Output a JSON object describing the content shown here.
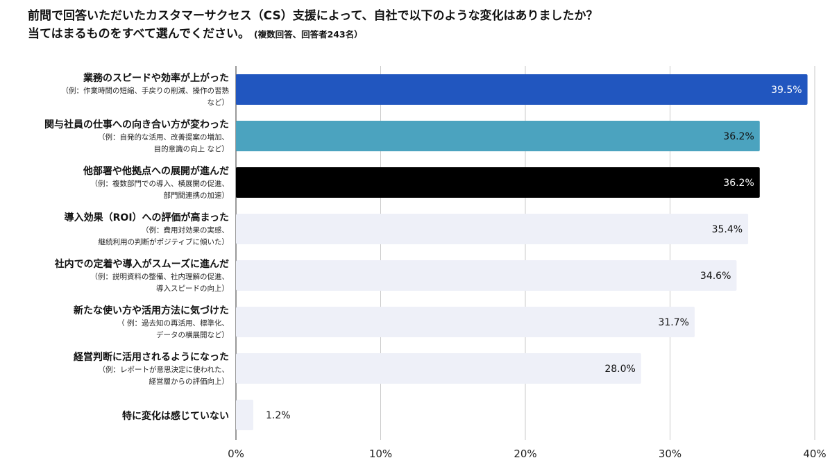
{
  "chart_data": {
    "type": "bar",
    "orientation": "horizontal",
    "title_line1": "前問で回答いただいたカスタマーサクセス（CS）支援によって、自社で以下のような変化はありましたか？",
    "title_line2": "当てはまるものをすべて選んでください。",
    "title_note": "(複数回答、回答者243名）",
    "categories": [
      {
        "label": "業務のスピードや効率が上がった",
        "sub": [
          "（例：作業時間の短縮、手戻りの削減、操作の習熟",
          "など）"
        ]
      },
      {
        "label": "関与社員の仕事への向き合い方が変わった",
        "sub": [
          "（例：自発的な活用、改善提案の増加、",
          "目的意識の向上 など）"
        ]
      },
      {
        "label": "他部署や他拠点への展開が進んだ",
        "sub": [
          "（例：複数部門での導入、横展開の促進、",
          "部門間連携の加速）"
        ]
      },
      {
        "label": "導入効果（ROI）への評価が高まった",
        "sub": [
          "（例：費用対効果の実感、",
          "継続利用の判断がポジティブに傾いた）"
        ]
      },
      {
        "label": "社内での定着や導入がスムーズに進んだ",
        "sub": [
          "（例：説明資料の整備、社内理解の促進、",
          "導入スピードの向上）"
        ]
      },
      {
        "label": "新たな使い方や活用方法に気づけた",
        "sub": [
          "（ 例：過去知の再活用、標準化、",
          "データの横展開など）"
        ]
      },
      {
        "label": "経営判断に活用されるようになった",
        "sub": [
          "（例：レポートが意思決定に使われた、",
          "経営層からの評価向上）"
        ]
      },
      {
        "label": "特に変化は感じていない",
        "sub": []
      }
    ],
    "values": [
      39.5,
      36.2,
      36.2,
      35.4,
      34.6,
      31.7,
      28.0,
      1.2
    ],
    "value_labels": [
      "39.5%",
      "36.2%",
      "36.2%",
      "35.4%",
      "34.6%",
      "31.7%",
      "28.0%",
      "1.2%"
    ],
    "bar_colors": [
      "#2156bf",
      "#4ba3bf",
      "#000000",
      "#eef0f8",
      "#eef0f8",
      "#eef0f8",
      "#eef0f8",
      "#eef0f8"
    ],
    "label_colors": [
      "#ffffff",
      "#111111",
      "#ffffff",
      "#111111",
      "#111111",
      "#111111",
      "#111111",
      "#111111"
    ],
    "xlim": [
      0,
      40
    ],
    "xticks": [
      0,
      10,
      20,
      30,
      40
    ],
    "xtick_labels": [
      "0%",
      "10%",
      "20%",
      "30%",
      "40%"
    ],
    "grid": true,
    "gridline_color": "#c8c8c8",
    "legend": "none"
  }
}
